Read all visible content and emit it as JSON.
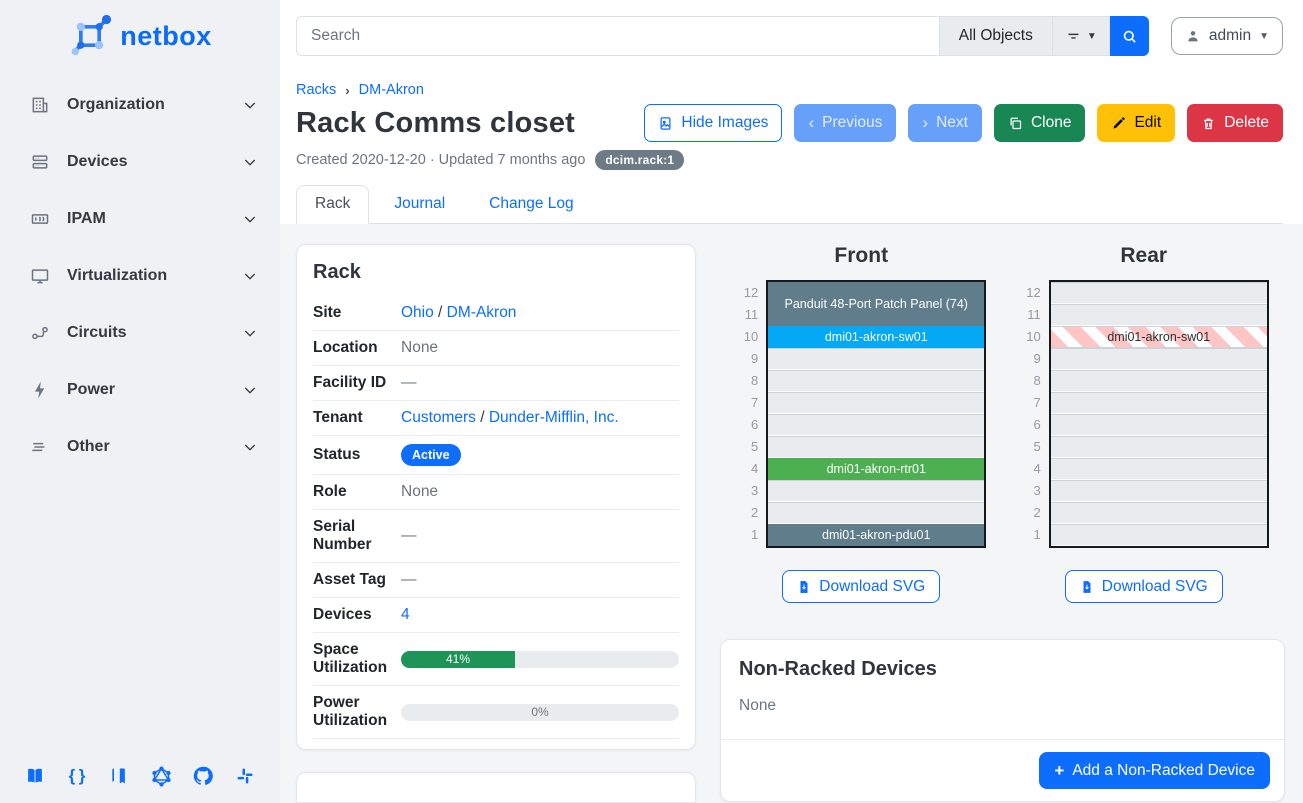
{
  "brand": "netbox",
  "sidebar": {
    "items": [
      {
        "label": "Organization",
        "icon": "building-icon"
      },
      {
        "label": "Devices",
        "icon": "server-icon"
      },
      {
        "label": "IPAM",
        "icon": "counter-icon"
      },
      {
        "label": "Virtualization",
        "icon": "monitor-icon"
      },
      {
        "label": "Circuits",
        "icon": "transit-icon"
      },
      {
        "label": "Power",
        "icon": "lightning-icon"
      },
      {
        "label": "Other",
        "icon": "menu-icon"
      }
    ],
    "footer_icons": [
      "docs-icon",
      "rest-api-icon",
      "api-book-icon",
      "graphql-icon",
      "github-icon",
      "slack-icon"
    ]
  },
  "topbar": {
    "search_placeholder": "Search",
    "scope_button": "All Objects",
    "user": "admin"
  },
  "page": {
    "breadcrumbs": [
      "Racks",
      "DM-Akron"
    ],
    "title": "Rack Comms closet",
    "meta": "Created 2020-12-20 · Updated 7 months ago",
    "object_badge": "dcim.rack:1",
    "actions": {
      "hide_images": "Hide Images",
      "previous": "Previous",
      "next": "Next",
      "clone": "Clone",
      "edit": "Edit",
      "delete": "Delete"
    },
    "tabs": [
      {
        "label": "Rack",
        "active": true
      },
      {
        "label": "Journal",
        "active": false
      },
      {
        "label": "Change Log",
        "active": false
      }
    ]
  },
  "rack_card": {
    "title": "Rack",
    "rows": [
      {
        "label": "Site"
      },
      {
        "label": "Location"
      },
      {
        "label": "Facility ID"
      },
      {
        "label": "Tenant"
      },
      {
        "label": "Status"
      },
      {
        "label": "Role"
      },
      {
        "label": "Serial Number"
      },
      {
        "label": "Asset Tag"
      },
      {
        "label": "Devices"
      },
      {
        "label": "Space Utilization"
      },
      {
        "label": "Power Utilization"
      }
    ],
    "values": {
      "site_link_1": "Ohio",
      "site_sep": " / ",
      "site_link_2": "DM-Akron",
      "location": "None",
      "facility_id": "—",
      "tenant_link_1": "Customers",
      "tenant_sep": " / ",
      "tenant_link_2": "Dunder-Mifflin, Inc.",
      "status": "Active",
      "role": "None",
      "serial_number": "—",
      "asset_tag": "—",
      "devices": "4",
      "space_utilization": {
        "percent": 41,
        "label": "41%"
      },
      "power_utilization": {
        "percent": 0,
        "label": "0%"
      }
    },
    "status_color": "#0d6efd",
    "space_bar_color": "#1e9457"
  },
  "elevations": {
    "units": [
      "12",
      "11",
      "10",
      "9",
      "8",
      "7",
      "6",
      "5",
      "4",
      "3",
      "2",
      "1"
    ],
    "download_label": "Download SVG",
    "front": {
      "title": "Front",
      "rows": [
        {
          "kind": "device",
          "span": 2,
          "label": "Panduit 48-Port Patch Panel (74)",
          "bg": "#607d8b",
          "fg": "#ffffff"
        },
        {
          "kind": "device",
          "span": 1,
          "label": "dmi01-akron-sw01",
          "bg": "#03a9f4",
          "fg": "#ffffff"
        },
        {
          "kind": "empty",
          "span": 1
        },
        {
          "kind": "empty",
          "span": 1
        },
        {
          "kind": "empty",
          "span": 1
        },
        {
          "kind": "empty",
          "span": 1
        },
        {
          "kind": "empty",
          "span": 1
        },
        {
          "kind": "device",
          "span": 1,
          "label": "dmi01-akron-rtr01",
          "bg": "#4caf50",
          "fg": "#ffffff"
        },
        {
          "kind": "empty",
          "span": 1
        },
        {
          "kind": "empty",
          "span": 1
        },
        {
          "kind": "device",
          "span": 1,
          "label": "dmi01-akron-pdu01",
          "bg": "#607d8b",
          "fg": "#ffffff"
        }
      ]
    },
    "rear": {
      "title": "Rear",
      "rows": [
        {
          "kind": "empty",
          "span": 1
        },
        {
          "kind": "empty",
          "span": 1
        },
        {
          "kind": "striped",
          "span": 1,
          "label": "dmi01-akron-sw01",
          "fg": "#303030"
        },
        {
          "kind": "empty",
          "span": 1
        },
        {
          "kind": "empty",
          "span": 1
        },
        {
          "kind": "empty",
          "span": 1
        },
        {
          "kind": "empty",
          "span": 1
        },
        {
          "kind": "empty",
          "span": 1
        },
        {
          "kind": "empty",
          "span": 1
        },
        {
          "kind": "empty",
          "span": 1
        },
        {
          "kind": "empty",
          "span": 1
        },
        {
          "kind": "empty",
          "span": 1
        }
      ]
    }
  },
  "non_racked": {
    "title": "Non-Racked Devices",
    "body": "None",
    "add_button": "Add a Non-Racked Device"
  }
}
